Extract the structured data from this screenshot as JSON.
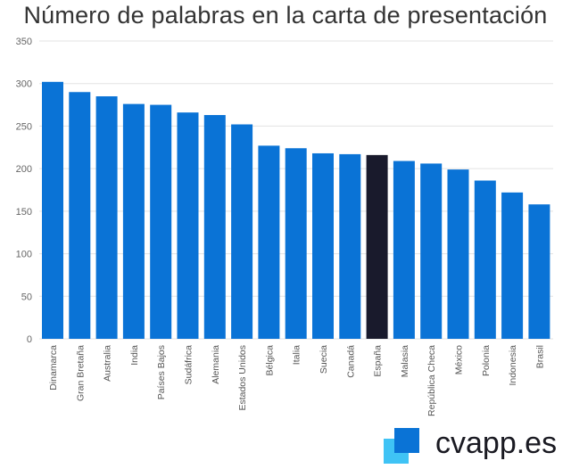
{
  "chart_data": {
    "type": "bar",
    "title": "Número de palabras en la carta de presentación",
    "categories": [
      "Dinamarca",
      "Gran Bretaña",
      "Australia",
      "India",
      "Países Bajos",
      "Sudáfrica",
      "Alemania",
      "Estados Unidos",
      "Bélgica",
      "Italia",
      "Suecia",
      "Canadá",
      "España",
      "Malasia",
      "República Checa",
      "México",
      "Polonia",
      "Indonesia",
      "Brasil"
    ],
    "values": [
      302,
      290,
      285,
      276,
      275,
      266,
      263,
      252,
      227,
      224,
      218,
      217,
      216,
      209,
      206,
      199,
      186,
      172,
      158
    ],
    "ylim": [
      0,
      350
    ],
    "yticks": [
      0,
      50,
      100,
      150,
      200,
      250,
      300,
      350
    ],
    "grid": true,
    "colors": {
      "default": "#0a73d6",
      "highlight": "#191a2c"
    },
    "highlight": "España"
  },
  "brand": {
    "name": "cvapp.es",
    "colors": [
      "#0a73d6",
      "#3fc3f5"
    ]
  }
}
